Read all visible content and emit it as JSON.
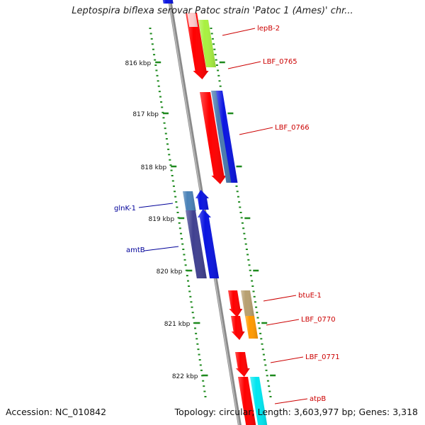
{
  "title": "Leptospira biflexa serovar Patoc strain 'Patoc 1 (Ames)' chr...",
  "footer": {
    "accession": "Accession: NC_010842",
    "summary": "Topology: circular; Length: 3,603,977 bp; Genes: 3,318"
  },
  "colors": {
    "backbone": "#8a8a8a",
    "tick": "#1e8a1e",
    "label_forward": "#cc0000",
    "label_reverse": "#000099"
  },
  "ticks": [
    {
      "label": "816 kbp",
      "kbp": 816
    },
    {
      "label": "817 kbp",
      "kbp": 817
    },
    {
      "label": "818 kbp",
      "kbp": 818
    },
    {
      "label": "819 kbp",
      "kbp": 819
    },
    {
      "label": "820 kbp",
      "kbp": 820
    },
    {
      "label": "821 kbp",
      "kbp": 821
    },
    {
      "label": "822 kbp",
      "kbp": 822
    }
  ],
  "gene_labels": [
    {
      "text": "lepB-2",
      "side": "right"
    },
    {
      "text": "LBF_0765",
      "side": "right"
    },
    {
      "text": "LBF_0766",
      "side": "right"
    },
    {
      "text": "glnK-1",
      "side": "left"
    },
    {
      "text": "amtB",
      "side": "left"
    },
    {
      "text": "btuE-1",
      "side": "right"
    },
    {
      "text": "LBF_0770",
      "side": "right"
    },
    {
      "text": "LBF_0771",
      "side": "right"
    },
    {
      "text": "atpB",
      "side": "right"
    }
  ]
}
